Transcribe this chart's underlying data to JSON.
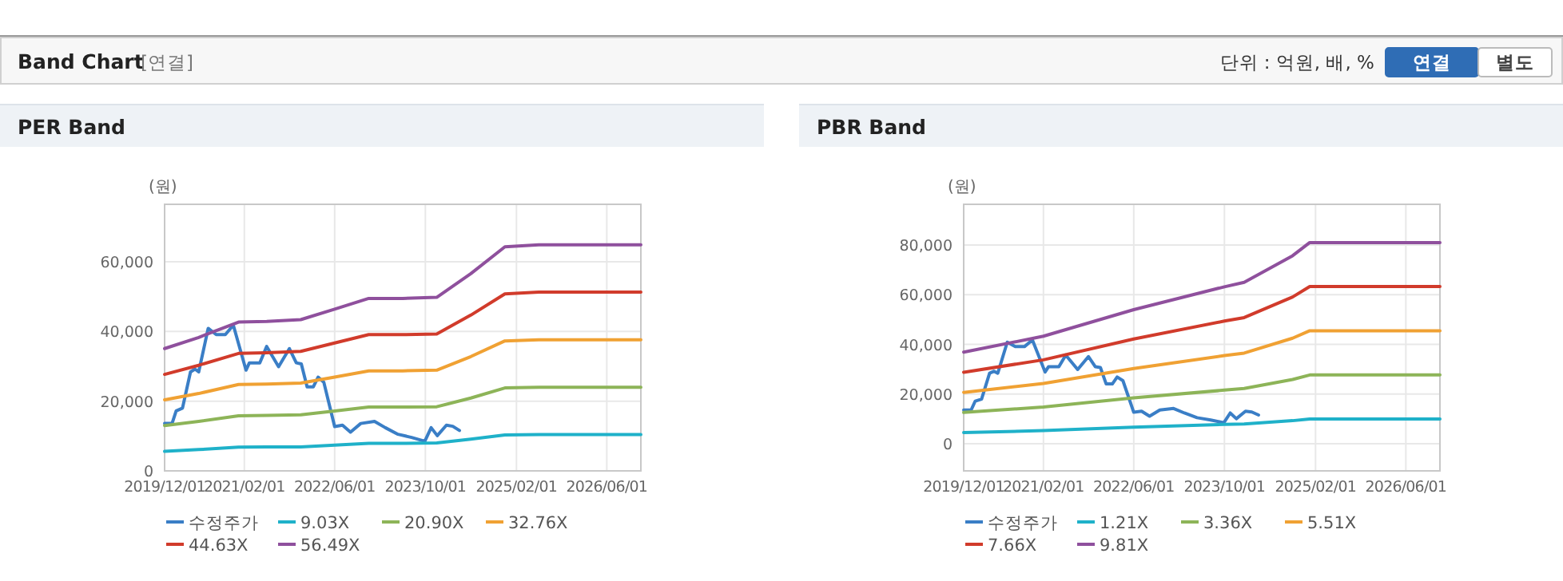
{
  "chart_data": [
    {
      "type": "other",
      "title": "Band Chart",
      "annotations": [
        "[연결]",
        "단위 : 억원, 배, %",
        "연결",
        "별도"
      ]
    },
    {
      "type": "line",
      "title": "PER Band",
      "ylabel": "(원)",
      "grid": true,
      "legend": "bottom",
      "xlim": [
        "2019-12-01",
        "2026-12-01"
      ],
      "ylim": [
        0,
        76500
      ],
      "xticks": [
        {
          "value": "2019-12-01",
          "label": "2019/12/01"
        },
        {
          "value": "2021-02-01",
          "label": "2021/02/01"
        },
        {
          "value": "2022-06-01",
          "label": "2022/06/01"
        },
        {
          "value": "2023-10-01",
          "label": "2023/10/01"
        },
        {
          "value": "2025-02-01",
          "label": "2025/02/01"
        },
        {
          "value": "2026-06-01",
          "label": "2026/06/01"
        }
      ],
      "yticks": [
        0,
        {
          "value": 20000,
          "label": "20,000"
        },
        {
          "value": 40000,
          "label": "40,000"
        },
        {
          "value": 60000,
          "label": "60,000"
        }
      ],
      "series": [
        {
          "name": "수정주가",
          "color": "#3a7ec6",
          "x": [
            "2019-12-01",
            "2020-01-10",
            "2020-02-01",
            "2020-03-06",
            "2020-04-18",
            "2020-05-12",
            "2020-06-01",
            "2020-07-22",
            "2020-09-03",
            "2020-10-22",
            "2020-12-04",
            "2021-02-10",
            "2021-02-28",
            "2021-04-25",
            "2021-06-01",
            "2021-08-04",
            "2021-10-01",
            "2021-11-07",
            "2021-12-04",
            "2022-01-04",
            "2022-02-06",
            "2022-03-04",
            "2022-04-04",
            "2022-06-01",
            "2022-07-13",
            "2022-08-25",
            "2022-10-19",
            "2023-01-01",
            "2023-02-28",
            "2023-05-07",
            "2023-07-19",
            "2023-09-28",
            "2023-11-01",
            "2023-12-04",
            "2024-01-22",
            "2024-02-25",
            "2024-04-01"
          ],
          "values": [
            13600,
            13600,
            17200,
            18000,
            28400,
            29200,
            28400,
            40900,
            39100,
            39100,
            41800,
            28900,
            31000,
            31000,
            35700,
            29900,
            35100,
            31000,
            30700,
            24100,
            24100,
            26900,
            25400,
            12700,
            13100,
            11100,
            13600,
            14200,
            12400,
            10500,
            9600,
            8500,
            12400,
            10100,
            13100,
            12800,
            11600
          ]
        },
        {
          "name": "9.03X",
          "color": "#1fb1c9",
          "x": [
            "2019-12-01",
            "2020-06-01",
            "2021-01-01",
            "2021-06-01",
            "2021-12-01",
            "2022-06-01",
            "2022-12-01",
            "2023-06-01",
            "2023-12-01",
            "2024-06-01",
            "2024-12-01",
            "2025-06-01",
            "2026-12-01"
          ],
          "values": [
            5600,
            6100,
            6800,
            6900,
            6900,
            7400,
            7900,
            7900,
            8000,
            9100,
            10300,
            10400,
            10400
          ]
        },
        {
          "name": "20.90X",
          "color": "#8db458",
          "x": [
            "2019-12-01",
            "2020-06-01",
            "2021-01-01",
            "2021-06-01",
            "2021-12-01",
            "2022-06-01",
            "2022-12-01",
            "2023-06-01",
            "2023-12-01",
            "2024-06-01",
            "2024-12-01",
            "2025-06-01",
            "2026-12-01"
          ],
          "values": [
            13000,
            14200,
            15800,
            15900,
            16100,
            17200,
            18300,
            18300,
            18400,
            20900,
            23800,
            24000,
            24000
          ]
        },
        {
          "name": "32.76X",
          "color": "#f0a133",
          "x": [
            "2019-12-01",
            "2020-06-01",
            "2021-01-01",
            "2021-06-01",
            "2021-12-01",
            "2022-06-01",
            "2022-12-01",
            "2023-06-01",
            "2023-12-01",
            "2024-06-01",
            "2024-12-01",
            "2025-06-01",
            "2026-12-01"
          ],
          "values": [
            20400,
            22200,
            24800,
            24900,
            25200,
            26900,
            28700,
            28700,
            28900,
            32800,
            37300,
            37600,
            37600
          ]
        },
        {
          "name": "44.63X",
          "color": "#d13b2b",
          "x": [
            "2019-12-01",
            "2020-06-01",
            "2021-01-01",
            "2021-06-01",
            "2021-12-01",
            "2022-06-01",
            "2022-12-01",
            "2023-06-01",
            "2023-12-01",
            "2024-06-01",
            "2024-12-01",
            "2025-06-01",
            "2026-12-01"
          ],
          "values": [
            27700,
            30300,
            33700,
            33900,
            34300,
            36700,
            39100,
            39100,
            39300,
            44700,
            50800,
            51300,
            51300
          ]
        },
        {
          "name": "56.49X",
          "color": "#8f509d",
          "x": [
            "2019-12-01",
            "2020-06-01",
            "2021-01-01",
            "2021-06-01",
            "2021-12-01",
            "2022-06-01",
            "2022-12-01",
            "2023-06-01",
            "2023-12-01",
            "2024-06-01",
            "2024-12-01",
            "2025-06-01",
            "2026-12-01"
          ],
          "values": [
            35100,
            38300,
            42700,
            42900,
            43400,
            46400,
            49500,
            49500,
            49800,
            56600,
            64300,
            64900,
            64900
          ]
        }
      ]
    },
    {
      "type": "line",
      "title": "PBR Band",
      "ylabel": "(원)",
      "grid": true,
      "legend": "bottom",
      "xlim": [
        "2019-12-01",
        "2026-12-01"
      ],
      "ylim": [
        -10900,
        96400
      ],
      "xticks": [
        {
          "value": "2019-12-01",
          "label": "2019/12/01"
        },
        {
          "value": "2021-02-01",
          "label": "2021/02/01"
        },
        {
          "value": "2022-06-01",
          "label": "2022/06/01"
        },
        {
          "value": "2023-10-01",
          "label": "2023/10/01"
        },
        {
          "value": "2025-02-01",
          "label": "2025/02/01"
        },
        {
          "value": "2026-06-01",
          "label": "2026/06/01"
        }
      ],
      "yticks": [
        0,
        {
          "value": 20000,
          "label": "20,000"
        },
        {
          "value": 40000,
          "label": "40,000"
        },
        {
          "value": 60000,
          "label": "60,000"
        },
        {
          "value": 80000,
          "label": "80,000"
        }
      ],
      "series": [
        {
          "name": "수정주가",
          "color": "#3a7ec6",
          "x": [
            "2019-12-01",
            "2020-01-10",
            "2020-02-01",
            "2020-03-06",
            "2020-04-18",
            "2020-05-12",
            "2020-06-01",
            "2020-07-22",
            "2020-09-03",
            "2020-10-22",
            "2020-12-04",
            "2021-02-10",
            "2021-02-28",
            "2021-04-25",
            "2021-06-01",
            "2021-08-04",
            "2021-10-01",
            "2021-11-07",
            "2021-12-04",
            "2022-01-04",
            "2022-02-06",
            "2022-03-04",
            "2022-04-04",
            "2022-06-01",
            "2022-07-13",
            "2022-08-25",
            "2022-10-19",
            "2023-01-01",
            "2023-02-28",
            "2023-05-07",
            "2023-07-19",
            "2023-09-28",
            "2023-11-01",
            "2023-12-04",
            "2024-01-22",
            "2024-02-25",
            "2024-04-01"
          ],
          "values": [
            13600,
            13600,
            17200,
            18000,
            28400,
            29200,
            28400,
            40900,
            39100,
            39100,
            41800,
            28900,
            31000,
            31000,
            35700,
            29900,
            35100,
            31000,
            30700,
            24100,
            24100,
            26900,
            25400,
            12700,
            13100,
            11100,
            13600,
            14200,
            12400,
            10500,
            9600,
            8500,
            12400,
            10100,
            13100,
            12800,
            11600
          ]
        },
        {
          "name": "1.21X",
          "color": "#1fb1c9",
          "x": [
            "2019-12-01",
            "2021-02-01",
            "2022-06-01",
            "2023-10-01",
            "2024-01-15",
            "2024-10-01",
            "2025-01-01",
            "2026-12-01"
          ],
          "values": [
            4500,
            5300,
            6700,
            7800,
            8000,
            9300,
            10000,
            10000
          ]
        },
        {
          "name": "3.36X",
          "color": "#8db458",
          "x": [
            "2019-12-01",
            "2021-02-01",
            "2022-06-01",
            "2023-10-01",
            "2024-01-15",
            "2024-10-01",
            "2025-01-01",
            "2026-12-01"
          ],
          "values": [
            12600,
            14800,
            18500,
            21600,
            22300,
            25900,
            27700,
            27700
          ]
        },
        {
          "name": "5.51X",
          "color": "#f0a133",
          "x": [
            "2019-12-01",
            "2021-02-01",
            "2022-06-01",
            "2023-10-01",
            "2024-01-15",
            "2024-10-01",
            "2025-01-01",
            "2026-12-01"
          ],
          "values": [
            20700,
            24300,
            30300,
            35500,
            36500,
            42500,
            45500,
            45500
          ]
        },
        {
          "name": "7.66X",
          "color": "#d13b2b",
          "x": [
            "2019-12-01",
            "2021-02-01",
            "2022-06-01",
            "2023-10-01",
            "2024-01-15",
            "2024-10-01",
            "2025-01-01",
            "2026-12-01"
          ],
          "values": [
            28800,
            33800,
            42200,
            49400,
            50800,
            59100,
            63300,
            63300
          ]
        },
        {
          "name": "9.81X",
          "color": "#8f509d",
          "x": [
            "2019-12-01",
            "2021-02-01",
            "2022-06-01",
            "2023-10-01",
            "2024-01-15",
            "2024-10-01",
            "2025-01-01",
            "2026-12-01"
          ],
          "values": [
            36900,
            43300,
            54000,
            63200,
            65000,
            75700,
            81000,
            81000
          ]
        }
      ]
    }
  ]
}
